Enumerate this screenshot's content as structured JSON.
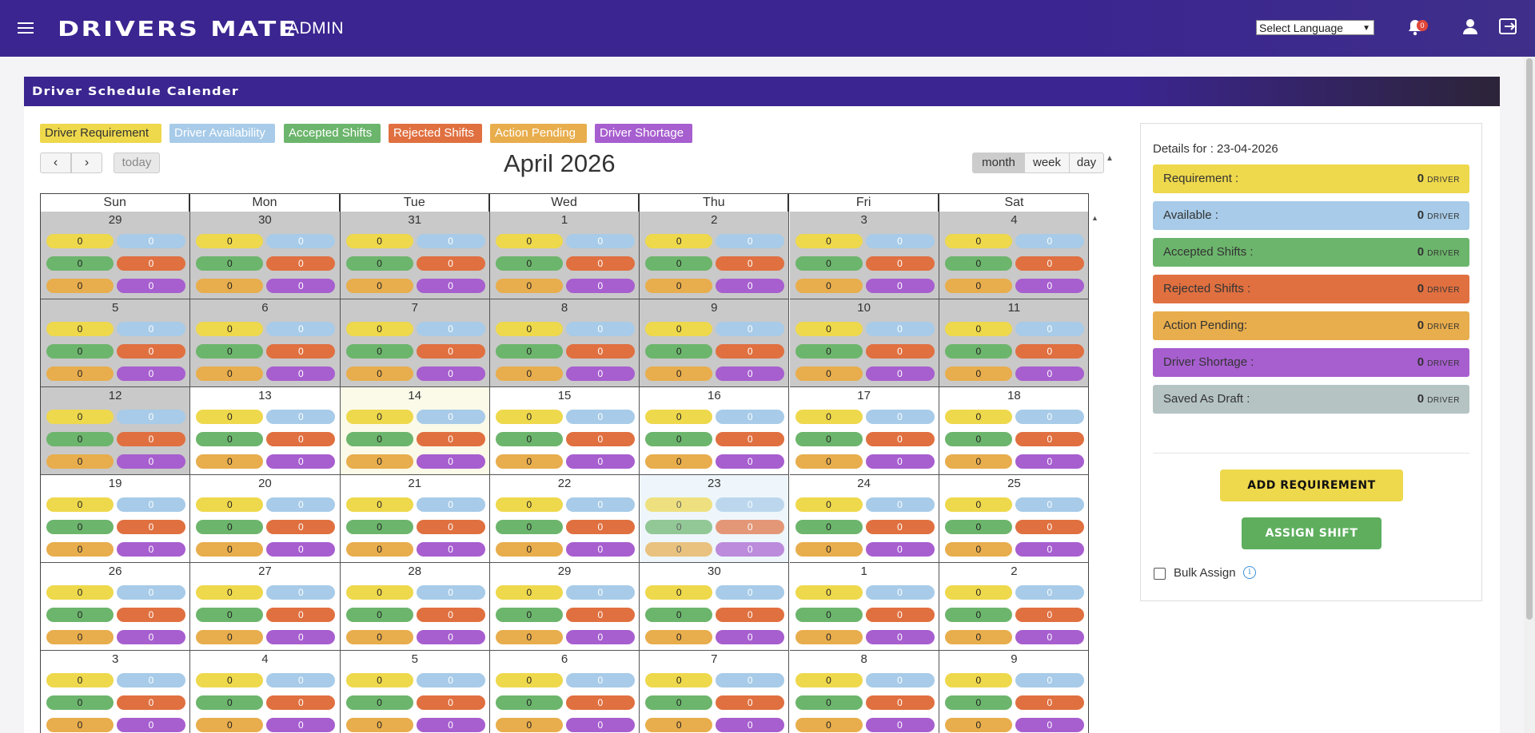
{
  "topbar": {
    "brand": "DRIVERS MATE",
    "role": "ADMIN",
    "language_select": "Select Language",
    "notification_count": "0"
  },
  "card": {
    "title": "Driver Schedule Calender"
  },
  "legend": [
    {
      "label": "Driver Requirement",
      "bg": "#eed84c",
      "fg": "#333"
    },
    {
      "label": "Driver Availability",
      "bg": "#a7cbe8",
      "fg": "#ffffff"
    },
    {
      "label": "Accepted Shifts",
      "bg": "#6cb56c",
      "fg": "#ffffff"
    },
    {
      "label": "Rejected Shifts",
      "bg": "#e07040",
      "fg": "#ffffff"
    },
    {
      "label": "Action Pending",
      "bg": "#e8ad4c",
      "fg": "#ffffff"
    },
    {
      "label": "Driver Shortage",
      "bg": "#a75ecf",
      "fg": "#ffffff"
    }
  ],
  "toolbar": {
    "prev_icon": "chevron-left-icon",
    "next_icon": "chevron-right-icon",
    "today": "today",
    "month_title": "April 2026",
    "views": [
      "month",
      "week",
      "day"
    ],
    "active_view": "month"
  },
  "calendar": {
    "weekdays": [
      "Sun",
      "Mon",
      "Tue",
      "Wed",
      "Thu",
      "Fri",
      "Sat"
    ],
    "weeks": [
      [
        "29",
        "30",
        "31",
        "1",
        "2",
        "3",
        "4"
      ],
      [
        "5",
        "6",
        "7",
        "8",
        "9",
        "10",
        "11"
      ],
      [
        "12",
        "13",
        "14",
        "15",
        "16",
        "17",
        "18"
      ],
      [
        "19",
        "20",
        "21",
        "22",
        "23",
        "24",
        "25"
      ],
      [
        "26",
        "27",
        "28",
        "29",
        "30",
        "1",
        "2"
      ],
      [
        "3",
        "4",
        "5",
        "6",
        "7",
        "8",
        "9"
      ]
    ],
    "counts": [
      "0",
      "0",
      "0",
      "0",
      "0",
      "0"
    ],
    "pill_colors": [
      "#eed84c",
      "#a7cbe8",
      "#6cb56c",
      "#e07040",
      "#e8ad4c",
      "#a75ecf"
    ],
    "past_bg": "#c9c9c9",
    "today_bg": "#fbfae8",
    "selected_bg": "#eef6fb",
    "today_cell": [
      2,
      2
    ],
    "selected_cell": [
      3,
      4
    ],
    "past_until_index": 15
  },
  "details": {
    "title": "Details for : 23-04-2026",
    "unit": "DRIVER",
    "rows": [
      {
        "label": "Requirement :",
        "value": "0",
        "bg": "#eed84c",
        "fg": "#333"
      },
      {
        "label": "Available :",
        "value": "0",
        "bg": "#a7cbe8",
        "fg": "#333"
      },
      {
        "label": "Accepted Shifts :",
        "value": "0",
        "bg": "#6cb56c",
        "fg": "#333"
      },
      {
        "label": "Rejected Shifts :",
        "value": "0",
        "bg": "#e07040",
        "fg": "#333"
      },
      {
        "label": "Action Pending:",
        "value": "0",
        "bg": "#e8ad4c",
        "fg": "#333"
      },
      {
        "label": "Driver Shortage :",
        "value": "0",
        "bg": "#a75ecf",
        "fg": "#333"
      },
      {
        "label": "Saved As Draft :",
        "value": "0",
        "bg": "#b5c3c3",
        "fg": "#333"
      }
    ],
    "add_requirement": "ADD REQUIREMENT",
    "assign_shift": "ASSIGN SHIFT",
    "bulk_assign": "Bulk Assign"
  }
}
